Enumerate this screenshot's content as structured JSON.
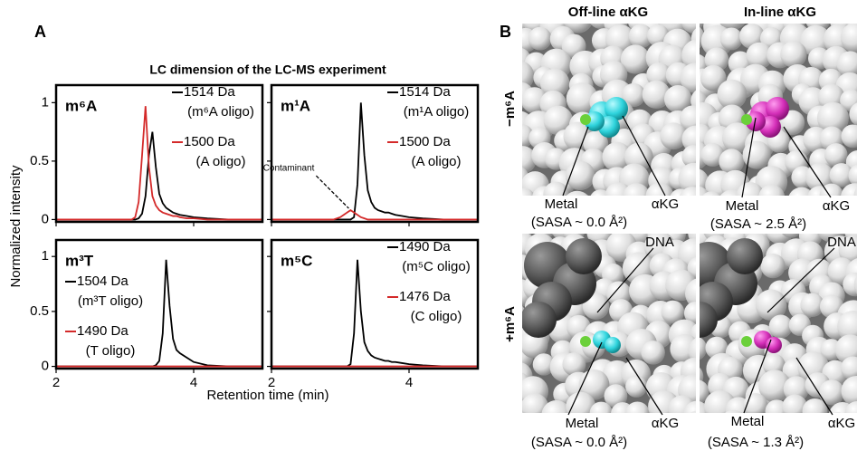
{
  "panel_labels": [
    "A",
    "B"
  ],
  "shared": {
    "suptitle": "LC dimension of the LC-MS experiment",
    "xlabel": "Retention time (min)",
    "ylabel": "Normalized intensity"
  },
  "chart_data": [
    {
      "type": "line",
      "title": "m⁶A",
      "legend": "upper right",
      "x": [
        2,
        2.9,
        3.0,
        3.1,
        3.15,
        3.2,
        3.25,
        3.3,
        3.35,
        3.4,
        3.45,
        3.5,
        3.55,
        3.6,
        3.65,
        3.7,
        3.75,
        3.8,
        3.9,
        4.0,
        4.2,
        4.5,
        5.0
      ],
      "series": [
        {
          "name": "1514 Da",
          "description": "(m⁶A oligo)",
          "color": "#000000",
          "values": [
            0,
            0,
            0,
            0,
            0,
            0.01,
            0.05,
            0.2,
            0.55,
            0.75,
            0.45,
            0.22,
            0.14,
            0.1,
            0.08,
            0.06,
            0.05,
            0.04,
            0.03,
            0.02,
            0.01,
            0,
            0
          ]
        },
        {
          "name": "1500 Da",
          "description": "(A oligo)",
          "color": "#d42a2a",
          "values": [
            0,
            0,
            0,
            0,
            0.02,
            0.15,
            0.55,
            0.97,
            0.45,
            0.2,
            0.12,
            0.08,
            0.06,
            0.05,
            0.04,
            0.03,
            0.03,
            0.02,
            0.01,
            0.01,
            0,
            0,
            0
          ]
        }
      ],
      "xlim": [
        2,
        5
      ],
      "ylim": [
        -0.02,
        1.15
      ],
      "xticks": [
        2,
        4
      ],
      "yticks": [
        0,
        0.5,
        1
      ]
    },
    {
      "type": "line",
      "title": "m¹A",
      "legend": "upper right",
      "x": [
        2,
        2.9,
        3.0,
        3.1,
        3.15,
        3.2,
        3.25,
        3.3,
        3.35,
        3.4,
        3.45,
        3.5,
        3.55,
        3.6,
        3.65,
        3.7,
        3.75,
        3.8,
        3.9,
        4.0,
        4.2,
        4.5,
        5.0
      ],
      "series": [
        {
          "name": "1514 Da",
          "description": "(m¹A oligo)",
          "color": "#000000",
          "values": [
            0,
            0,
            0,
            0,
            0,
            0.02,
            0.3,
            1.0,
            0.55,
            0.25,
            0.15,
            0.1,
            0.08,
            0.07,
            0.06,
            0.06,
            0.05,
            0.04,
            0.03,
            0.02,
            0.01,
            0,
            0
          ]
        },
        {
          "name": "1500 Da",
          "description": "(A oligo)",
          "color": "#d42a2a",
          "values": [
            0,
            0,
            0.02,
            0.06,
            0.08,
            0.06,
            0.04,
            0.02,
            0.01,
            0,
            0,
            0,
            0,
            0,
            0,
            0,
            0,
            0,
            0,
            0,
            0,
            0,
            0
          ]
        }
      ],
      "annotations": [
        {
          "text": "Contaminant",
          "x": 3.15,
          "y": 0.08
        }
      ],
      "xlim": [
        2,
        5
      ],
      "ylim": [
        -0.02,
        1.15
      ],
      "xticks": [
        2,
        4
      ],
      "yticks": [
        0,
        0.5,
        1
      ]
    },
    {
      "type": "line",
      "title": "m³T",
      "legend": "center left",
      "x": [
        2,
        2.9,
        3.0,
        3.1,
        3.15,
        3.2,
        3.25,
        3.3,
        3.35,
        3.4,
        3.45,
        3.5,
        3.55,
        3.6,
        3.65,
        3.7,
        3.75,
        3.8,
        3.9,
        4.0,
        4.2,
        4.5,
        5.0
      ],
      "series": [
        {
          "name": "1504 Da",
          "description": "(m³T oligo)",
          "color": "#000000",
          "values": [
            0,
            0,
            0,
            0,
            0,
            0,
            0,
            0,
            0,
            0,
            0.01,
            0.05,
            0.3,
            0.97,
            0.55,
            0.25,
            0.15,
            0.12,
            0.08,
            0.04,
            0.01,
            0,
            0
          ]
        },
        {
          "name": "1490 Da",
          "description": "(T oligo)",
          "color": "#d42a2a",
          "values": [
            0,
            0,
            0,
            0,
            0,
            0,
            0,
            0,
            0,
            0,
            0,
            0,
            0,
            0,
            0,
            0,
            0,
            0,
            0,
            0,
            0,
            0,
            0
          ]
        }
      ],
      "xlim": [
        2,
        5
      ],
      "ylim": [
        -0.02,
        1.15
      ],
      "xticks": [
        2,
        4
      ],
      "yticks": [
        0,
        0.5,
        1
      ]
    },
    {
      "type": "line",
      "title": "m⁵C",
      "legend": "upper right",
      "x": [
        2,
        2.9,
        3.0,
        3.1,
        3.15,
        3.2,
        3.25,
        3.3,
        3.35,
        3.4,
        3.45,
        3.5,
        3.55,
        3.6,
        3.65,
        3.7,
        3.75,
        3.8,
        3.9,
        4.0,
        4.2,
        4.5,
        5.0
      ],
      "series": [
        {
          "name": "1490 Da",
          "description": "(m⁵C oligo)",
          "color": "#000000",
          "values": [
            0,
            0,
            0,
            0,
            0.02,
            0.3,
            0.97,
            0.5,
            0.22,
            0.14,
            0.1,
            0.08,
            0.07,
            0.06,
            0.05,
            0.05,
            0.04,
            0.04,
            0.03,
            0.02,
            0.01,
            0,
            0
          ]
        },
        {
          "name": "1476 Da",
          "description": "(C oligo)",
          "color": "#d42a2a",
          "values": [
            0,
            0,
            0,
            0,
            0,
            0,
            0,
            0,
            0,
            0,
            0,
            0,
            0,
            0,
            0,
            0,
            0,
            0,
            0,
            0,
            0,
            0,
            0
          ]
        }
      ],
      "xlim": [
        2,
        5
      ],
      "ylim": [
        -0.02,
        1.15
      ],
      "xticks": [
        2,
        4
      ],
      "yticks": [
        0,
        0.5,
        1
      ]
    }
  ],
  "panel_b": {
    "columns": [
      "Off-line αKG",
      "In-line αKG"
    ],
    "rows": [
      "−m⁶A",
      "+m⁶A"
    ],
    "images": [
      {
        "labels": [
          "Metal",
          "αKG"
        ],
        "sasa": "(SASA ~ 0.0 Å²)"
      },
      {
        "labels": [
          "Metal",
          "αKG"
        ],
        "sasa": "(SASA ~ 2.5 Å²)"
      },
      {
        "labels": [
          "DNA",
          "Metal",
          "αKG"
        ],
        "sasa": "(SASA ~ 0.0 Å²)"
      },
      {
        "labels": [
          "DNA",
          "Metal",
          "αKG"
        ],
        "sasa": "(SASA ~ 1.3 Å²)"
      }
    ]
  }
}
